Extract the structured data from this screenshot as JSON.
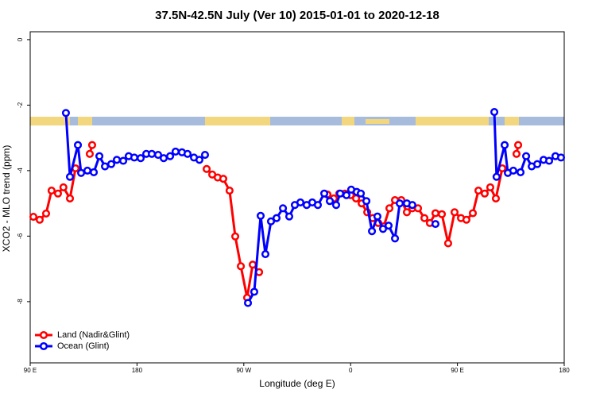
{
  "chart_data": {
    "type": "line",
    "title": "37.5N-42.5N July (Ver 10)   2015-01-01 to 2020-12-18",
    "x_label": "Longitude (deg E)",
    "y_label": "XCO2 - MLO trend (ppm)",
    "xlim": [
      90,
      540
    ],
    "xticks": [
      {
        "value": 90,
        "label": "90 E"
      },
      180,
      {
        "value": 270,
        "label": "90 W"
      },
      {
        "value": 360,
        "label": "0"
      },
      {
        "value": 450,
        "label": "90 E"
      },
      {
        "value": 540,
        "label": "180"
      }
    ],
    "ylim": [
      -9.87,
      0.24
    ],
    "yticks": [
      0,
      -2,
      -4,
      -6,
      -8
    ],
    "legend": "bottom-left",
    "series": [
      {
        "name": "Land (Nadir&Glint)",
        "color": "#ff0000",
        "x": [
          92.7,
          98,
          103.4,
          108,
          113.4,
          118,
          123.5,
          128.2,
          null,
          140.2,
          142.2,
          null,
          238.7,
          243.4,
          248,
          252.7,
          258,
          262.8,
          267.5,
          272.8,
          277.5,
          282.9,
          null,
          340.5,
          345.8,
          350.5,
          355.2,
          360,
          364.6,
          369.3,
          374,
          378.6,
          383.3,
          388,
          392.7,
          397.4,
          402.7,
          407.4,
          412,
          416.8,
          422.2,
          426.8,
          431.5,
          436.9,
          442.2,
          447.6,
          453,
          457.6,
          463,
          467.7,
          473,
          477.7,
          482.4,
          487.8,
          null,
          499.8,
          501.2
        ],
        "values": [
          -5.41,
          -5.5,
          -5.31,
          -4.61,
          -4.7,
          -4.51,
          -4.85,
          -3.93,
          null,
          -3.49,
          -3.22,
          null,
          -3.95,
          -4.12,
          -4.21,
          -4.25,
          -4.61,
          -6.01,
          -6.92,
          -7.88,
          -6.87,
          -7.1,
          null,
          -4.73,
          -4.85,
          -4.7,
          -4.7,
          -4.75,
          -4.85,
          -5.0,
          -5.27,
          -5.45,
          -5.6,
          -5.7,
          -5.15,
          -4.9,
          -4.9,
          -5.27,
          -5.15,
          -5.15,
          -5.45,
          -5.6,
          -5.3,
          -5.33,
          -6.22,
          -5.27,
          -5.45,
          -5.5,
          -5.3,
          -4.61,
          -4.7,
          -4.51,
          -4.85,
          -3.93,
          null,
          -3.49,
          -3.22
        ]
      },
      {
        "name": "Ocean (Glint)",
        "color": "#0000ff",
        "x": [
          120.1,
          123.5,
          130.2,
          132.9,
          138.2,
          143.6,
          148.3,
          153,
          158.3,
          163,
          168.4,
          173,
          177.7,
          183.1,
          187.8,
          192.5,
          197.8,
          202.5,
          207.9,
          212.5,
          217.9,
          222.6,
          228,
          232.6,
          237.3,
          null,
          273.5,
          278.8,
          284.2,
          288.2,
          292.9,
          297.6,
          303,
          308.3,
          313,
          317.7,
          323,
          327.7,
          332.4,
          337.8,
          342.5,
          347.8,
          351.2,
          356.5,
          360.5,
          365.2,
          368.6,
          373.3,
          378,
          382.6,
          387.3,
          392,
          397.4,
          401.4,
          407.4,
          412,
          null,
          431.5,
          null,
          481.1,
          483,
          489.8,
          492.5,
          497.1,
          503.2,
          507.9,
          512.6,
          517.3,
          522.6,
          527.3,
          532.6,
          537.3
        ],
        "values": [
          -2.24,
          -4.19,
          -3.22,
          -4.07,
          -4.0,
          -4.05,
          -3.56,
          -3.87,
          -3.8,
          -3.67,
          -3.7,
          -3.56,
          -3.6,
          -3.62,
          -3.49,
          -3.49,
          -3.52,
          -3.62,
          -3.56,
          -3.42,
          -3.44,
          -3.49,
          -3.6,
          -3.67,
          -3.52,
          null,
          -8.04,
          -7.7,
          -5.38,
          -6.55,
          -5.55,
          -5.45,
          -5.15,
          -5.4,
          -5.05,
          -4.97,
          -5.05,
          -4.97,
          -5.05,
          -4.7,
          -4.93,
          -5.05,
          -4.7,
          -4.75,
          -4.58,
          -4.65,
          -4.7,
          -4.93,
          -5.85,
          -5.4,
          -5.78,
          -5.68,
          -6.07,
          -5.0,
          -5.0,
          -5.05,
          null,
          -5.63,
          null,
          -2.21,
          -4.19,
          -3.22,
          -4.07,
          -4.0,
          -4.05,
          -3.56,
          -3.87,
          -3.8,
          -3.67,
          -3.7,
          -3.56,
          -3.6
        ]
      }
    ]
  }
}
